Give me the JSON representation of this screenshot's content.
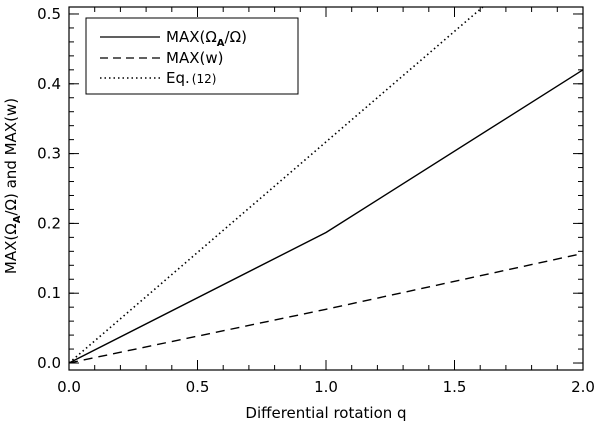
{
  "chart_data": {
    "type": "line",
    "title": "",
    "xlabel": "Differential rotation q",
    "ylabel": {
      "part1": "MAX(Ω",
      "sub": "A",
      "part2": "/Ω)  and  MAX(w)"
    },
    "xlim": [
      0.0,
      2.0
    ],
    "ylim": [
      -0.01,
      0.51
    ],
    "x_ticks": [
      0.0,
      0.5,
      1.0,
      1.5,
      2.0
    ],
    "x_tick_labels": [
      "0.0",
      "0.5",
      "1.0",
      "1.5",
      "2.0"
    ],
    "y_ticks": [
      0.0,
      0.1,
      0.2,
      0.3,
      0.4,
      0.5
    ],
    "y_tick_labels": [
      "0.0",
      "0.1",
      "0.2",
      "0.3",
      "0.4",
      "0.5"
    ],
    "x_minor_step": 0.1,
    "y_minor_step": 0.02,
    "legend_position": "top-left",
    "series": [
      {
        "name": "MAX(ΩA/Ω)",
        "legend_parts": [
          "MAX(Ω",
          "A",
          "/Ω)"
        ],
        "style": "solid",
        "x": [
          0.0,
          1.0,
          2.0
        ],
        "y": [
          0.0,
          0.187,
          0.42
        ]
      },
      {
        "name": "MAX(w)",
        "legend_parts": [
          "MAX(w)"
        ],
        "style": "dashed",
        "x": [
          0.0,
          1.0,
          2.0
        ],
        "y": [
          0.0,
          0.077,
          0.157
        ]
      },
      {
        "name": "Eq.(12)",
        "legend_parts": [
          "Eq.",
          "(12)"
        ],
        "style": "dotted",
        "x": [
          0.0,
          1.61
        ],
        "y": [
          0.0,
          0.51
        ]
      }
    ]
  }
}
